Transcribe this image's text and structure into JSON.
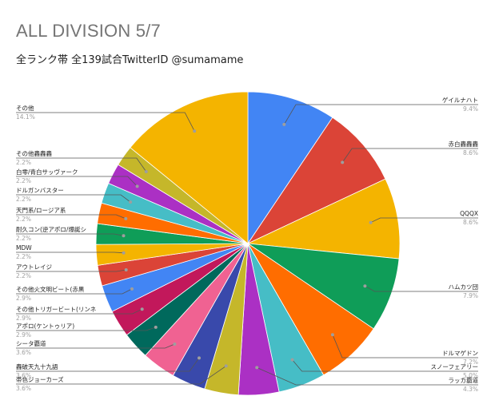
{
  "title": "ALL DIVISION 5/7",
  "subtitle": "全ランク帯 全139試合TwitterID @sumamame",
  "chart_data": {
    "type": "pie",
    "title": "ALL DIVISION 5/7",
    "subtitle": "全ランク帯 全139試合TwitterID @sumamame",
    "slices": [
      {
        "label": "ゲイルナハト",
        "pct_label": "9.4%",
        "value": 9.4,
        "color": "#4285f4"
      },
      {
        "label": "赤白轟轟轟",
        "pct_label": "8.6%",
        "value": 8.6,
        "color": "#db4437"
      },
      {
        "label": "QQQX",
        "pct_label": "8.6%",
        "value": 8.6,
        "color": "#f4b400"
      },
      {
        "label": "ハムカツ団",
        "pct_label": "7.9%",
        "value": 7.9,
        "color": "#0f9d58"
      },
      {
        "label": "ドルマゲドン",
        "pct_label": "7.2%",
        "value": 7.2,
        "color": "#ff6d00"
      },
      {
        "label": "スノーフェアリー",
        "pct_label": "5.0%",
        "value": 5.0,
        "color": "#46bdc6"
      },
      {
        "label": "ラッカ覇道",
        "pct_label": "4.3%",
        "value": 4.3,
        "color": "#ab30c4"
      },
      {
        "label": "帯色ジョーカーズ",
        "pct_label": "3.6%",
        "value": 3.6,
        "color": "#c5b72a"
      },
      {
        "label": "轟破天九十九語",
        "pct_label": "3.6%",
        "value": 3.6,
        "color": "#3949ab"
      },
      {
        "label": "シータ覇道",
        "pct_label": "3.6%",
        "value": 3.6,
        "color": "#f06292"
      },
      {
        "label": "アポロ(ケントゥリア)",
        "pct_label": "2.9%",
        "value": 2.9,
        "color": "#00695c"
      },
      {
        "label": "その他トリガービート(リンネ",
        "pct_label": "2.9%",
        "value": 2.9,
        "color": "#c2185b"
      },
      {
        "label": "その他火文明ビート(赤黒",
        "pct_label": "2.9%",
        "value": 2.9,
        "color": "#4285f4"
      },
      {
        "label": "アウトレイジ",
        "pct_label": "2.2%",
        "value": 2.2,
        "color": "#db4437"
      },
      {
        "label": "MDW",
        "pct_label": "2.2%",
        "value": 2.2,
        "color": "#f4b400"
      },
      {
        "label": "耐久コン(逆アポロ/爆誕シ",
        "pct_label": "2.2%",
        "value": 2.2,
        "color": "#0f9d58"
      },
      {
        "label": "天門系/ロージア系",
        "pct_label": "2.2%",
        "value": 2.2,
        "color": "#ff6d00"
      },
      {
        "label": "ドルガンバスター",
        "pct_label": "2.2%",
        "value": 2.2,
        "color": "#46bdc6"
      },
      {
        "label": "白零/青白サッヴァーク",
        "pct_label": "2.2%",
        "value": 2.2,
        "color": "#ab30c4"
      },
      {
        "label": "その他轟轟轟",
        "pct_label": "2.2%",
        "value": 2.2,
        "color": "#c5b72a"
      },
      {
        "label": "その他",
        "pct_label": "14.1%",
        "value": 14.1,
        "color": "#f4b400"
      }
    ]
  }
}
